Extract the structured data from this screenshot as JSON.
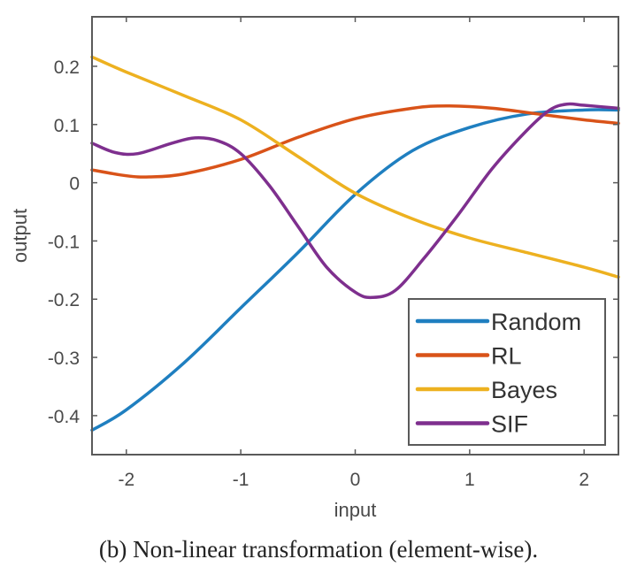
{
  "caption": "(b)  Non-linear transformation (element-wise).",
  "chart_data": {
    "type": "line",
    "title": "",
    "xlabel": "input",
    "ylabel": "output",
    "xlim": [
      -2.3,
      2.3
    ],
    "ylim": [
      -0.467,
      0.285
    ],
    "xticks": [
      -2,
      -1,
      0,
      1,
      2
    ],
    "xtick_labels": [
      "-2",
      "-1",
      "0",
      "1",
      "2"
    ],
    "yticks": [
      0.2,
      0.1,
      0,
      -0.1,
      -0.2,
      -0.3,
      -0.4
    ],
    "ytick_labels": [
      "0.2",
      "0.1",
      "0",
      "-0.1",
      "-0.2",
      "-0.3",
      "-0.4"
    ],
    "grid": false,
    "legend_position": "bottom-right",
    "series": [
      {
        "name": "Random",
        "color": "#1f7fc0",
        "x": [
          -2.3,
          -2.0,
          -1.5,
          -1.0,
          -0.5,
          0.0,
          0.5,
          1.0,
          1.5,
          2.0,
          2.3
        ],
        "y": [
          -0.425,
          -0.39,
          -0.31,
          -0.215,
          -0.12,
          -0.02,
          0.055,
          0.095,
          0.118,
          0.125,
          0.125
        ]
      },
      {
        "name": "RL",
        "color": "#d95319",
        "x": [
          -2.3,
          -2.0,
          -1.8,
          -1.5,
          -1.0,
          -0.5,
          0.0,
          0.5,
          0.8,
          1.2,
          1.6,
          2.0,
          2.3
        ],
        "y": [
          0.022,
          0.012,
          0.01,
          0.015,
          0.04,
          0.078,
          0.11,
          0.128,
          0.132,
          0.128,
          0.118,
          0.108,
          0.102
        ]
      },
      {
        "name": "Bayes",
        "color": "#edb120",
        "x": [
          -2.3,
          -2.0,
          -1.5,
          -1.0,
          -0.5,
          0.0,
          0.5,
          1.0,
          1.5,
          2.0,
          2.3
        ],
        "y": [
          0.216,
          0.19,
          0.15,
          0.108,
          0.045,
          -0.018,
          -0.062,
          -0.095,
          -0.12,
          -0.145,
          -0.162
        ]
      },
      {
        "name": "SIF",
        "color": "#7e2f8e",
        "x": [
          -2.3,
          -2.1,
          -1.9,
          -1.6,
          -1.4,
          -1.2,
          -1.0,
          -0.75,
          -0.5,
          -0.25,
          0.0,
          0.15,
          0.35,
          0.6,
          0.9,
          1.2,
          1.5,
          1.7,
          1.85,
          2.0,
          2.3
        ],
        "y": [
          0.068,
          0.052,
          0.05,
          0.068,
          0.077,
          0.072,
          0.05,
          -0.005,
          -0.075,
          -0.145,
          -0.188,
          -0.197,
          -0.185,
          -0.13,
          -0.055,
          0.025,
          0.09,
          0.125,
          0.135,
          0.133,
          0.128
        ]
      }
    ]
  }
}
